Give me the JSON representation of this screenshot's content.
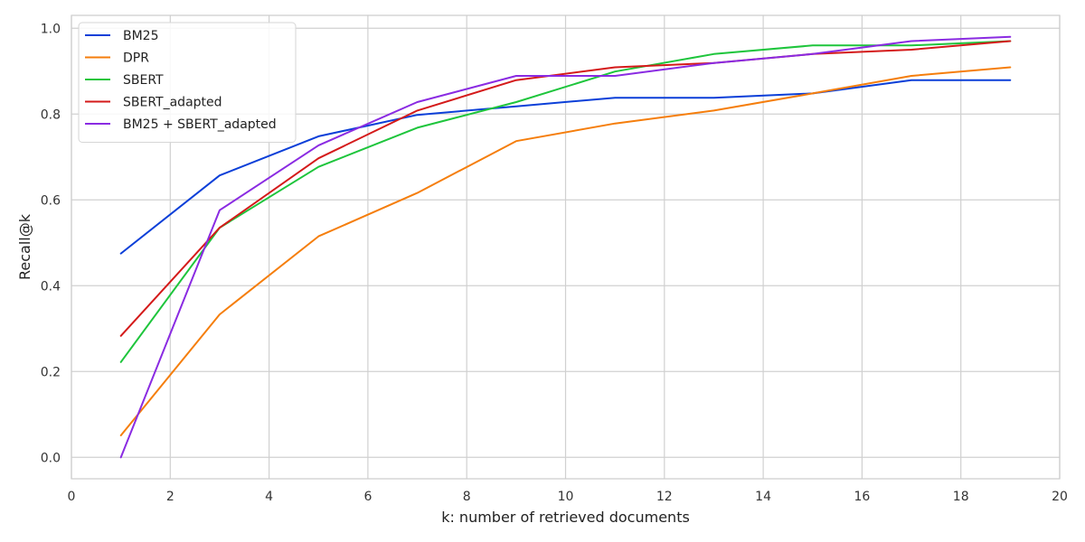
{
  "chart_data": {
    "type": "line",
    "title": "",
    "xlabel": "k: number of retrieved documents",
    "ylabel": "Recall@k",
    "xlim": [
      0,
      20
    ],
    "ylim": [
      -0.05,
      1.03
    ],
    "xticks": [
      0,
      2,
      4,
      6,
      8,
      10,
      12,
      14,
      16,
      18,
      20
    ],
    "yticks": [
      0.0,
      0.2,
      0.4,
      0.6,
      0.8,
      1.0
    ],
    "xtick_labels": [
      "0",
      "2",
      "4",
      "6",
      "8",
      "10",
      "12",
      "14",
      "16",
      "18",
      "20"
    ],
    "ytick_labels": [
      "0.0",
      "0.2",
      "0.4",
      "0.6",
      "0.8",
      "1.0"
    ],
    "grid": true,
    "legend_position": "top-left",
    "x": [
      1,
      3,
      5,
      7,
      9,
      11,
      13,
      15,
      17,
      19
    ],
    "series": [
      {
        "name": "BM25",
        "color": "#0b3fd8",
        "values": [
          0.475,
          0.657,
          0.748,
          0.798,
          0.818,
          0.838,
          0.838,
          0.848,
          0.879,
          0.879
        ]
      },
      {
        "name": "DPR",
        "color": "#f57e0c",
        "values": [
          0.051,
          0.333,
          0.515,
          0.616,
          0.737,
          0.778,
          0.808,
          0.848,
          0.889,
          0.909
        ]
      },
      {
        "name": "SBERT",
        "color": "#1ec53c",
        "values": [
          0.222,
          0.535,
          0.677,
          0.768,
          0.828,
          0.899,
          0.94,
          0.96,
          0.96,
          0.97
        ]
      },
      {
        "name": "SBERT_adapted",
        "color": "#d41a1a",
        "values": [
          0.283,
          0.535,
          0.697,
          0.808,
          0.879,
          0.909,
          0.919,
          0.94,
          0.95,
          0.97
        ]
      },
      {
        "name": "BM25 + SBERT_adapted",
        "color": "#8a2be2",
        "values": [
          0.0,
          0.576,
          0.727,
          0.828,
          0.889,
          0.889,
          0.919,
          0.94,
          0.97,
          0.98
        ]
      }
    ]
  }
}
